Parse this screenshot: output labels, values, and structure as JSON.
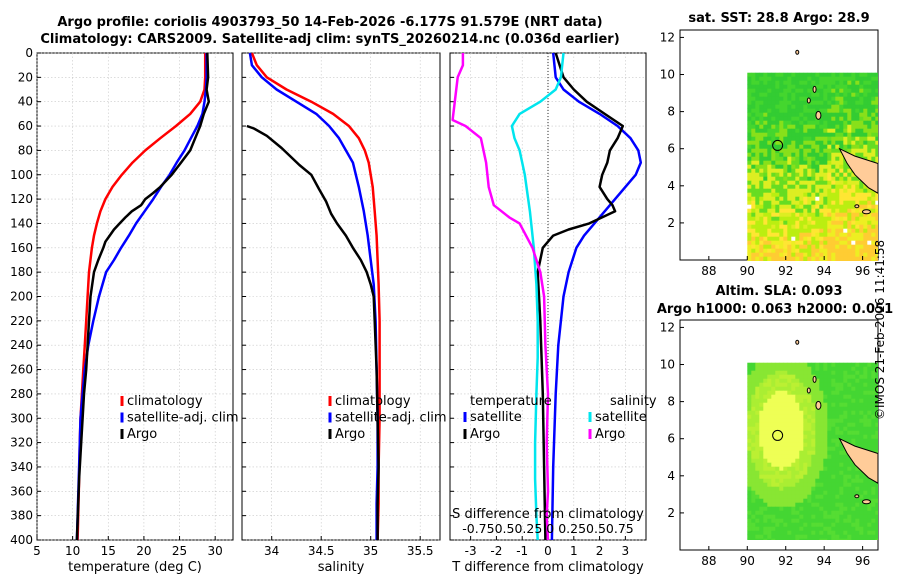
{
  "header": {
    "title_line1": "Argo profile: coriolis 4903793_50 14-Feb-2026 -6.177S 91.579E (NRT data)",
    "title_line2": "Climatology: CARS2009. Satellite-adj clim: synTS_20260214.nc (0.036d earlier)"
  },
  "colors": {
    "climatology": "#ff0000",
    "satellite_adj": "#0000ff",
    "argo": "#000000",
    "sat_T": "#00e5ee",
    "sat_S": "#ff00ff"
  },
  "chart_data": [
    {
      "type": "line",
      "panel": "temperature",
      "xlabel": "temperature (deg C)",
      "xlim": [
        5,
        32.5
      ],
      "ylim": [
        0,
        400
      ],
      "xticks": [
        5,
        10,
        15,
        20,
        25,
        30
      ],
      "yticks": [
        0,
        20,
        40,
        60,
        80,
        100,
        120,
        140,
        160,
        180,
        200,
        220,
        240,
        260,
        280,
        300,
        320,
        340,
        360,
        380,
        400
      ],
      "legend": [
        "climatology",
        "satellite-adj. clim",
        "Argo"
      ],
      "series": [
        {
          "name": "climatology",
          "color": "#ff0000",
          "x": [
            28.6,
            28.6,
            28.5,
            27.9,
            26.5,
            24.5,
            22.3,
            20.2,
            18.4,
            16.9,
            15.6,
            14.6,
            13.9,
            13.4,
            13.0,
            12.7,
            12.3,
            12.1,
            11.9,
            11.7,
            11.5,
            11.3,
            11.1,
            11.0,
            10.9,
            10.7
          ],
          "y": [
            0,
            20,
            30,
            40,
            50,
            60,
            70,
            80,
            90,
            100,
            110,
            120,
            130,
            140,
            150,
            160,
            180,
            200,
            220,
            240,
            260,
            280,
            300,
            320,
            350,
            400
          ]
        },
        {
          "name": "satellite-adj. clim",
          "color": "#0000ff",
          "x": [
            28.8,
            28.8,
            28.7,
            28.5,
            28.2,
            27.5,
            26.6,
            25.7,
            24.6,
            23.6,
            22.4,
            21.3,
            20.1,
            18.9,
            17.9,
            16.8,
            15.8,
            14.7,
            13.7,
            12.9,
            12.2,
            11.7,
            11.4,
            11.1,
            10.9,
            10.6
          ],
          "y": [
            0,
            20,
            30,
            40,
            50,
            60,
            70,
            80,
            90,
            100,
            110,
            120,
            130,
            140,
            150,
            160,
            170,
            180,
            200,
            220,
            240,
            260,
            280,
            300,
            340,
            400
          ]
        },
        {
          "name": "Argo",
          "color": "#000000",
          "x": [
            28.9,
            29.0,
            28.8,
            29.1,
            28.4,
            27.9,
            27.2,
            26.5,
            25.2,
            23.9,
            22.3,
            21.3,
            20.2,
            19.6,
            18.3,
            17.4,
            16.6,
            15.8,
            15.2,
            14.6,
            14.3,
            13.6,
            13.0,
            12.5,
            12.3,
            12.1,
            11.9,
            11.6,
            11.4,
            11.2,
            10.9,
            10.6
          ],
          "y": [
            0,
            20,
            30,
            40,
            50,
            60,
            70,
            80,
            90,
            100,
            110,
            115,
            120,
            125,
            130,
            135,
            140,
            145,
            150,
            155,
            160,
            170,
            180,
            200,
            220,
            240,
            260,
            280,
            300,
            320,
            350,
            400
          ]
        }
      ]
    },
    {
      "type": "line",
      "panel": "salinity",
      "xlabel": "salinity",
      "xlim": [
        33.7,
        35.7
      ],
      "ylim": [
        0,
        400
      ],
      "xticks": [
        34,
        34.5,
        35,
        35.5
      ],
      "legend": [
        "climatology",
        "satellite-adj. clim",
        "Argo"
      ],
      "series": [
        {
          "name": "climatology",
          "color": "#ff0000",
          "x": [
            33.8,
            33.85,
            33.95,
            34.15,
            34.4,
            34.62,
            34.78,
            34.88,
            34.94,
            34.98,
            35.02,
            35.04,
            35.06,
            35.07,
            35.08,
            35.09,
            35.09,
            35.09,
            35.08,
            35.08,
            35.07
          ],
          "y": [
            0,
            10,
            20,
            30,
            40,
            50,
            60,
            70,
            80,
            90,
            110,
            130,
            150,
            170,
            190,
            220,
            260,
            300,
            340,
            370,
            400
          ]
        },
        {
          "name": "satellite-adj. clim",
          "color": "#0000ff",
          "x": [
            33.78,
            33.8,
            33.9,
            34.05,
            34.25,
            34.45,
            34.58,
            34.68,
            34.75,
            34.82,
            34.88,
            34.93,
            34.97,
            35.0,
            35.03,
            35.05,
            35.06,
            35.07,
            35.07,
            35.06,
            35.06
          ],
          "y": [
            0,
            10,
            20,
            30,
            40,
            50,
            60,
            70,
            80,
            90,
            110,
            130,
            150,
            170,
            190,
            220,
            260,
            300,
            340,
            370,
            400
          ]
        },
        {
          "name": "Argo",
          "color": "#000000",
          "x": [
            33.75,
            33.82,
            33.95,
            34.1,
            34.28,
            34.4,
            34.48,
            34.55,
            34.6,
            34.66,
            34.75,
            34.82,
            34.9,
            34.96,
            35.0,
            35.03,
            35.04,
            35.06,
            35.07,
            35.08,
            35.07,
            35.07
          ],
          "y": [
            60,
            62,
            68,
            78,
            92,
            100,
            112,
            122,
            132,
            140,
            150,
            160,
            170,
            180,
            190,
            200,
            220,
            260,
            300,
            340,
            370,
            400
          ]
        }
      ]
    },
    {
      "type": "line",
      "panel": "difference",
      "xlabel": "T difference from climatology",
      "xlabel_top": "S difference from climatology",
      "xlim": [
        -3.8,
        3.8
      ],
      "ylim": [
        0,
        400
      ],
      "xticks": [
        -3,
        -2,
        -1,
        0,
        1,
        2,
        3
      ],
      "top_tick_text": "-0.750.50.25  0  0.250.50.75",
      "legend_T_title": "temperature",
      "legend_S_title": "salinity",
      "legend": [
        "satellite",
        "Argo",
        "satellite",
        "Argo"
      ],
      "series": [
        {
          "name": "T satellite",
          "color": "#0000ff",
          "x": [
            0.2,
            0.3,
            0.6,
            1.2,
            2.0,
            2.7,
            3.2,
            3.5,
            3.6,
            3.4,
            3.0,
            2.6,
            2.2,
            1.8,
            1.4,
            1.1,
            0.8,
            0.6,
            0.4,
            0.3,
            0.2,
            0.15
          ],
          "y": [
            0,
            20,
            30,
            40,
            50,
            60,
            70,
            80,
            90,
            100,
            110,
            120,
            130,
            140,
            150,
            160,
            180,
            200,
            240,
            280,
            340,
            400
          ]
        },
        {
          "name": "T Argo",
          "color": "#000000",
          "x": [
            0.3,
            0.6,
            1.0,
            1.5,
            2.2,
            2.9,
            2.7,
            2.4,
            2.3,
            2.1,
            2.0,
            2.3,
            2.5,
            2.6,
            1.6,
            0.8,
            0.2,
            -0.2,
            -0.4,
            -0.3,
            -0.2,
            -0.15,
            -0.1
          ],
          "y": [
            0,
            20,
            30,
            40,
            50,
            60,
            70,
            80,
            90,
            100,
            110,
            120,
            125,
            130,
            140,
            145,
            150,
            160,
            180,
            220,
            280,
            340,
            400
          ]
        },
        {
          "name": "S satellite",
          "color": "#00e5ee",
          "x": [
            0.6,
            0.5,
            0.3,
            -0.3,
            -1.1,
            -1.4,
            -1.3,
            -1.1,
            -0.9,
            -0.7,
            -0.55,
            -0.45,
            -0.4,
            -0.4,
            -0.45,
            -0.5,
            -0.5,
            -0.45,
            -0.4
          ],
          "y": [
            0,
            20,
            30,
            40,
            50,
            60,
            70,
            80,
            100,
            130,
            160,
            190,
            220,
            250,
            280,
            320,
            350,
            380,
            400
          ]
        },
        {
          "name": "S Argo",
          "color": "#ff00ff",
          "x": [
            -3.3,
            -3.3,
            -3.4,
            -3.5,
            -3.7,
            -3.2,
            -2.6,
            -2.4,
            -2.3,
            -2.1,
            -1.8,
            -1.5,
            -1.1,
            -0.6,
            -0.3,
            -0.15,
            -0.1,
            0.0,
            -0.05,
            0.0,
            -0.05,
            0.0
          ],
          "y": [
            0,
            10,
            15,
            20,
            55,
            60,
            70,
            90,
            110,
            125,
            130,
            135,
            140,
            160,
            180,
            200,
            240,
            280,
            320,
            360,
            380,
            400
          ]
        }
      ]
    }
  ],
  "maps": {
    "sst": {
      "title": "sat. SST: 28.8 Argo: 28.9",
      "xticks": [
        88,
        90,
        92,
        94,
        96
      ],
      "yticks": [
        2,
        4,
        6,
        8,
        10,
        12
      ],
      "xlim": [
        86.5,
        96.8
      ],
      "ylim": [
        0,
        12.4
      ],
      "argo_lon": 91.579,
      "argo_lat": 6.177
    },
    "sla": {
      "title_line1": "Altim. SLA: 0.093",
      "title_line2": "Argo h1000: 0.063 h2000: 0.051",
      "xticks": [
        88,
        90,
        92,
        94,
        96
      ],
      "yticks": [
        2,
        4,
        6,
        8,
        10,
        12
      ],
      "xlim": [
        86.5,
        96.8
      ],
      "ylim": [
        0,
        12.4
      ],
      "argo_lon": 91.579,
      "argo_lat": 6.177
    }
  },
  "stamp": "©IMOS 21-Feb-2026 11:41:58"
}
